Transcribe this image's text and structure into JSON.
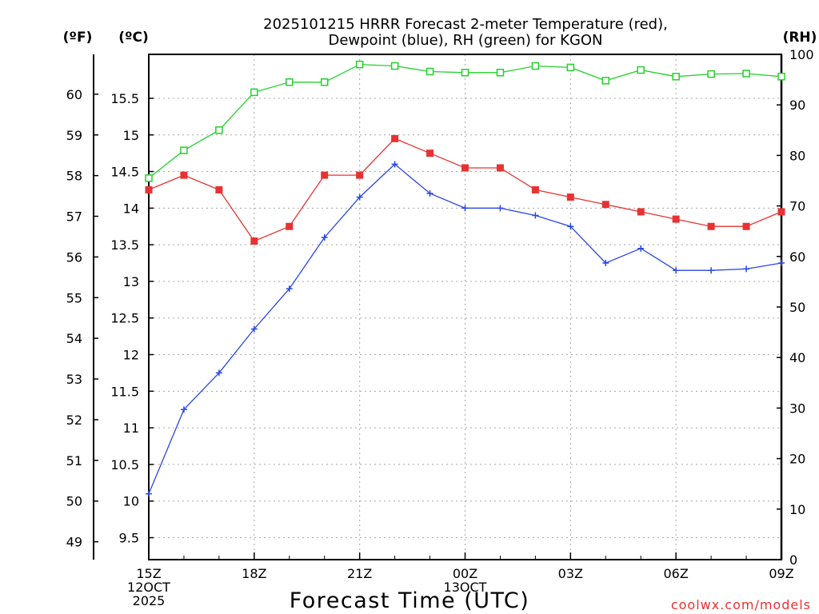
{
  "chart_data": {
    "type": "line",
    "title_line1": "2025101215 HRRR Forecast 2-meter Temperature (red),",
    "title_line2": "Dewpoint (blue), RH (green) for KGON",
    "left_outer_unit": "(ºF)",
    "left_inner_unit": "(ºC)",
    "right_unit": "(RH)",
    "xlabel": "Forecast Time (UTC)",
    "credit": "coolwx.com/models",
    "x_hours": [
      0,
      1,
      2,
      3,
      4,
      5,
      6,
      7,
      8,
      9,
      10,
      11,
      12,
      13,
      14,
      15,
      16,
      17,
      18
    ],
    "xlim": [
      0,
      18
    ],
    "x_ticks": [
      {
        "h": 0,
        "lines": [
          "15Z",
          "12OCT",
          "2025"
        ]
      },
      {
        "h": 3,
        "lines": [
          "18Z"
        ]
      },
      {
        "h": 6,
        "lines": [
          "21Z"
        ]
      },
      {
        "h": 9,
        "lines": [
          "00Z",
          "13OCT"
        ]
      },
      {
        "h": 12,
        "lines": [
          "03Z"
        ]
      },
      {
        "h": 15,
        "lines": [
          "06Z"
        ]
      },
      {
        "h": 18,
        "lines": [
          "09Z"
        ]
      }
    ],
    "ylim_c": [
      9.2,
      16.1
    ],
    "ylim_rh": [
      0,
      100
    ],
    "yticks_f": [
      49,
      50,
      51,
      52,
      53,
      54,
      55,
      56,
      57,
      58,
      59,
      60
    ],
    "yticks_c": [
      9.5,
      10,
      10.5,
      11,
      11.5,
      12,
      12.5,
      13,
      13.5,
      14,
      14.5,
      15,
      15.5
    ],
    "yticks_rh": [
      0,
      10,
      20,
      30,
      40,
      50,
      60,
      70,
      80,
      90,
      100
    ],
    "series": [
      {
        "name": "Temperature",
        "axis": "c",
        "color": "#e83232",
        "marker": "filled-square",
        "values": [
          14.25,
          14.45,
          14.25,
          13.55,
          13.75,
          14.45,
          14.45,
          14.95,
          14.75,
          14.55,
          14.55,
          14.25,
          14.15,
          14.05,
          13.95,
          13.85,
          13.75,
          13.75,
          13.95
        ]
      },
      {
        "name": "Dewpoint",
        "axis": "c",
        "color": "#2a46e6",
        "marker": "plus",
        "values": [
          10.1,
          11.25,
          11.75,
          12.35,
          12.9,
          13.6,
          14.15,
          14.6,
          14.2,
          14.0,
          14.0,
          13.9,
          13.75,
          13.25,
          13.45,
          13.15,
          13.15,
          13.17,
          13.25
        ]
      },
      {
        "name": "RH",
        "axis": "rh",
        "color": "#22d22a",
        "marker": "open-square",
        "values": [
          75.5,
          81,
          85,
          92.5,
          94.5,
          94.5,
          98,
          97.7,
          96.6,
          96.4,
          96.4,
          97.7,
          97.4,
          94.8,
          96.9,
          95.6,
          96.1,
          96.2,
          95.6
        ]
      }
    ]
  }
}
